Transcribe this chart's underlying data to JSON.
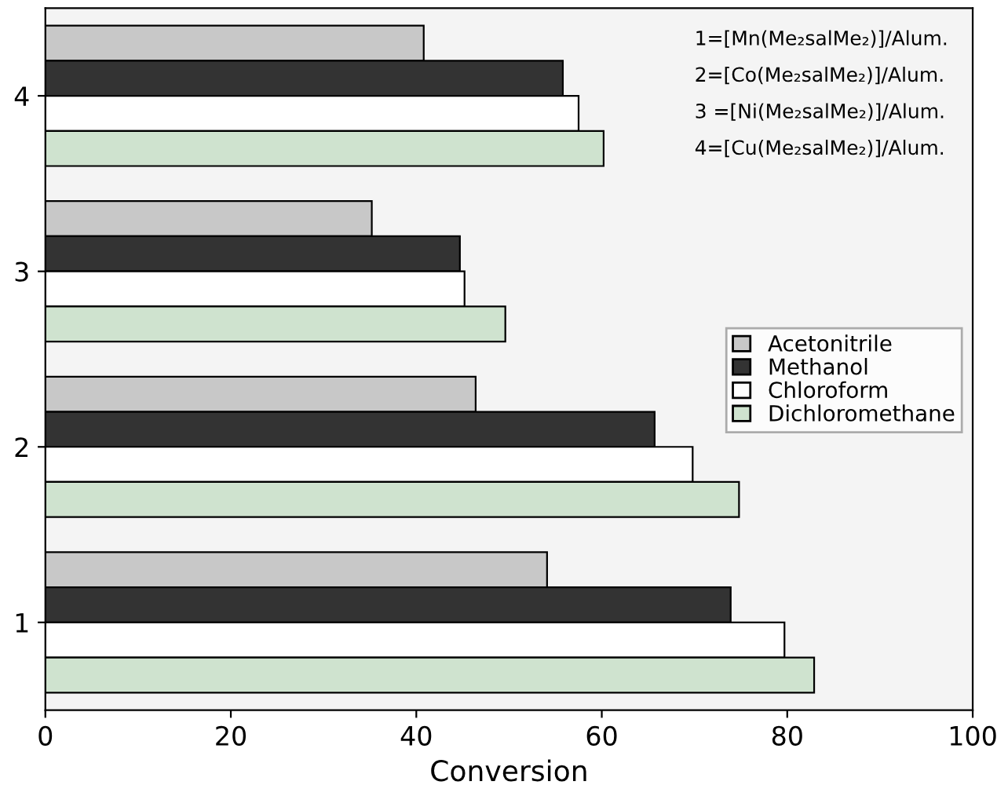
{
  "chart_data": {
    "type": "bar",
    "orientation": "horizontal",
    "xlabel": "Conversion",
    "categories": [
      "4",
      "3",
      "2",
      "1"
    ],
    "series": [
      {
        "name": "Acetonitrile",
        "color": "#c8c8c8",
        "values": [
          40.8,
          35.2,
          46.4,
          54.1
        ]
      },
      {
        "name": "Methanol",
        "color": "#333333",
        "values": [
          55.8,
          44.7,
          65.7,
          73.9
        ]
      },
      {
        "name": "Chloroform",
        "color": "#ffffff",
        "values": [
          57.5,
          45.2,
          69.8,
          79.7
        ]
      },
      {
        "name": "Dichloromethane",
        "color": "#cfe3cf",
        "values": [
          60.2,
          49.6,
          74.8,
          82.9
        ]
      }
    ],
    "xlim": [
      0,
      100
    ],
    "xticks": [
      0,
      20,
      40,
      60,
      80,
      100
    ],
    "annotations": [
      "1=[Mn(Me₂salMe₂)]/Alum.",
      "2=[Co(Me₂salMe₂)]/Alum.",
      "3 =[Ni(Me₂salMe₂)]/Alum.",
      "4=[Cu(Me₂salMe₂)]/Alum."
    ],
    "legend": "right",
    "grid": false
  }
}
